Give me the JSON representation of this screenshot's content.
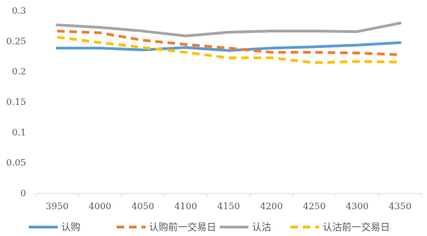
{
  "chart_data": {
    "type": "line",
    "title": "",
    "xlabel": "",
    "ylabel": "",
    "x": [
      "3950",
      "4000",
      "4050",
      "4100",
      "4150",
      "4200",
      "4250",
      "4300",
      "4350"
    ],
    "ylim": [
      0,
      0.3
    ],
    "yticks": [
      "0",
      "0.05",
      "0.1",
      "0.15",
      "0.2",
      "0.25",
      "0.3"
    ],
    "yticks_values": [
      0,
      0.05,
      0.1,
      0.15,
      0.2,
      0.25,
      0.3
    ],
    "grid": false,
    "legend_position": "bottom",
    "series": [
      {
        "name": "认购",
        "color": "#5B9BD5",
        "dashed": false,
        "values": [
          0.239,
          0.239,
          0.236,
          0.24,
          0.235,
          0.239,
          0.241,
          0.244,
          0.248
        ]
      },
      {
        "name": "认购前一交易日",
        "color": "#ED7D31",
        "dashed": true,
        "values": [
          0.267,
          0.264,
          0.252,
          0.245,
          0.239,
          0.232,
          0.232,
          0.231,
          0.228
        ]
      },
      {
        "name": "认沽",
        "color": "#A5A5A5",
        "dashed": false,
        "values": [
          0.277,
          0.273,
          0.267,
          0.259,
          0.265,
          0.267,
          0.267,
          0.266,
          0.28
        ]
      },
      {
        "name": "认沽前一交易日",
        "color": "#FFC000",
        "dashed": true,
        "values": [
          0.257,
          0.248,
          0.24,
          0.232,
          0.223,
          0.223,
          0.215,
          0.217,
          0.216
        ]
      }
    ]
  }
}
